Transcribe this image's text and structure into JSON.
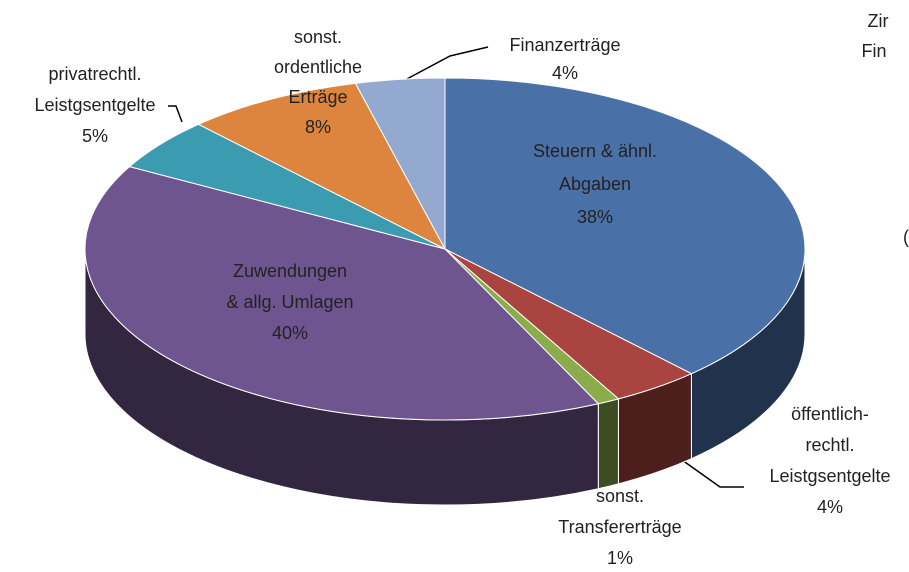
{
  "chart_data": {
    "type": "pie3d",
    "categories": [
      [
        "Steuern & ähnl.",
        "Abgaben"
      ],
      [
        "öffentlich-",
        "rechtl.",
        "Leistgsentgelte"
      ],
      [
        "sonst.",
        "Transfererträge"
      ],
      [
        "Zuwendungen",
        "& allg. Umlagen"
      ],
      [
        "privatrechtl.",
        "Leistgsentgelte"
      ],
      [
        "sonst.",
        "ordentliche",
        "Erträge"
      ],
      [
        "Finanzerträge"
      ]
    ],
    "values": [
      38,
      4,
      1,
      40,
      5,
      8,
      4
    ],
    "value_labels": [
      "38%",
      "4%",
      "1%",
      "40%",
      "5%",
      "8%",
      "4%"
    ],
    "colors": [
      "#4a70a8",
      "#a94441",
      "#8aac4a",
      "#6f558f",
      "#3b9bb0",
      "#dd853e",
      "#93a9d0"
    ],
    "annotations": [
      "Zir",
      "Fin",
      "("
    ]
  }
}
